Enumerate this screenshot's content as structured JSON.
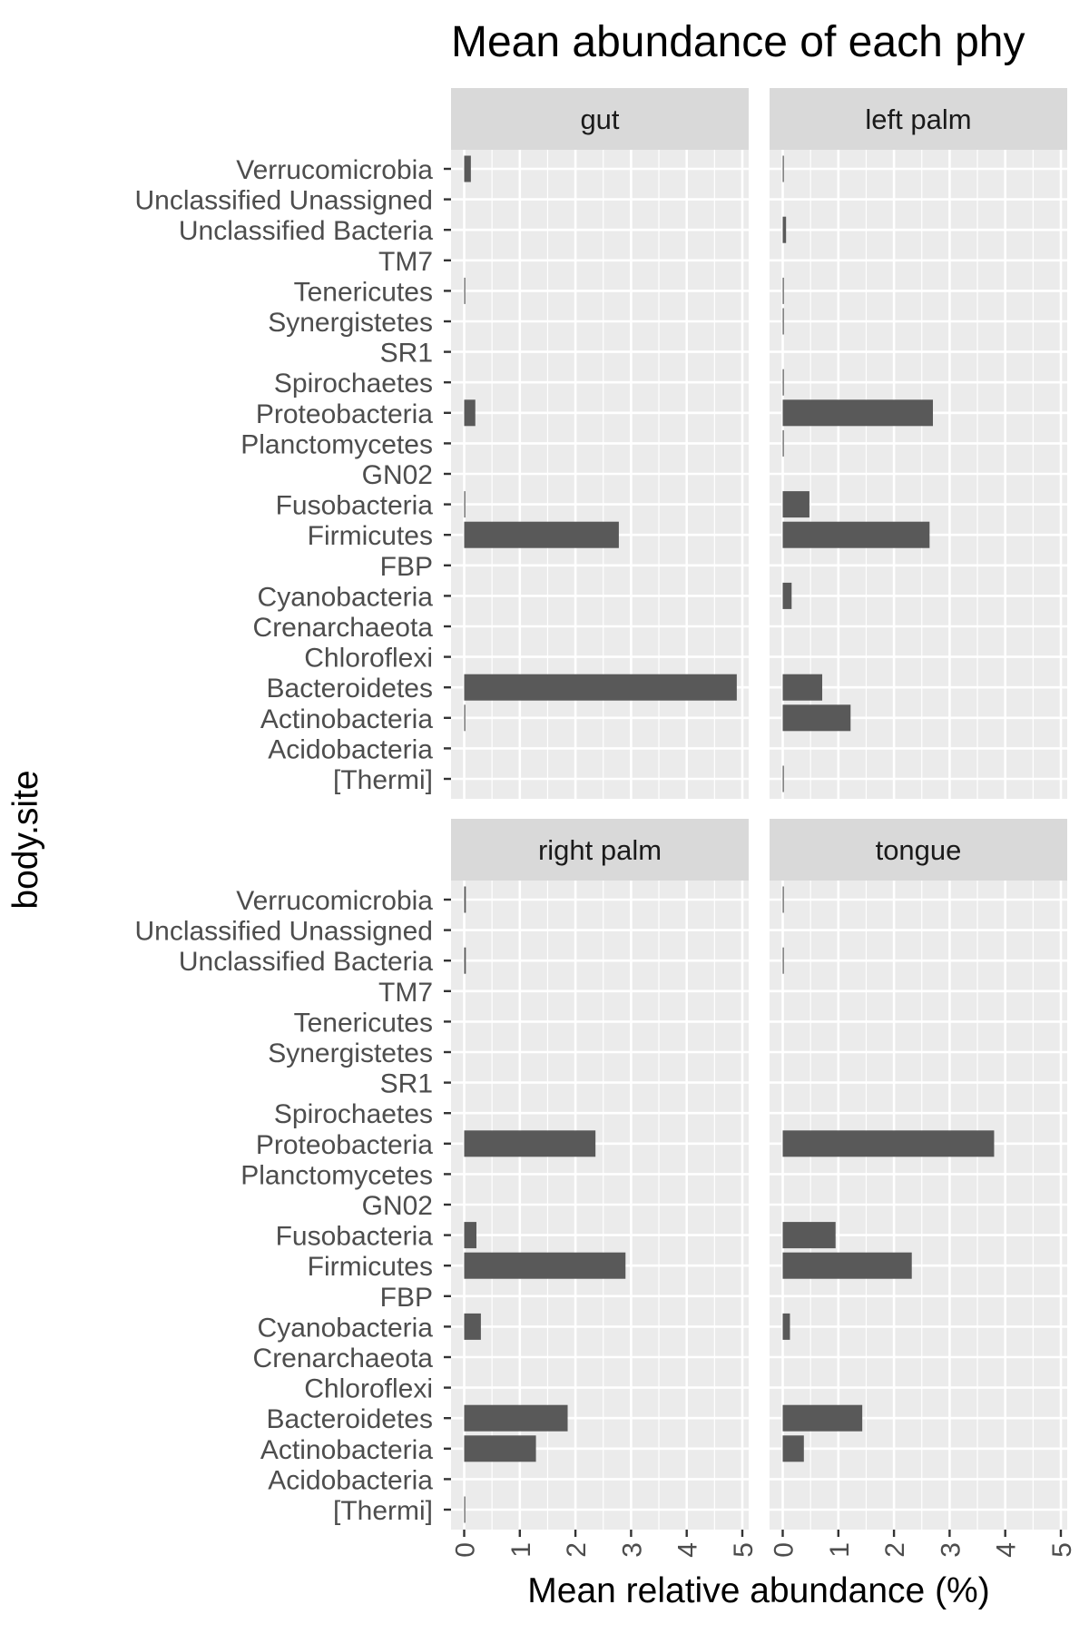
{
  "chart_data": {
    "type": "bar",
    "orientation": "horizontal",
    "facet_variable": "body.site",
    "title": "Mean abundance of each phy",
    "xlabel": "Mean relative abundance (%)",
    "ylabel": "body.site",
    "xlim": [
      0,
      5
    ],
    "x_ticks": [
      "0",
      "1",
      "2",
      "3",
      "4",
      "5"
    ],
    "grid": true,
    "categories": [
      "Verrucomicrobia",
      "Unclassified Unassigned",
      "Unclassified Bacteria",
      "TM7",
      "Tenericutes",
      "Synergistetes",
      "SR1",
      "Spirochaetes",
      "Proteobacteria",
      "Planctomycetes",
      "GN02",
      "Fusobacteria",
      "Firmicutes",
      "FBP",
      "Cyanobacteria",
      "Crenarchaeota",
      "Chloroflexi",
      "Bacteroidetes",
      "Actinobacteria",
      "Acidobacteria",
      "[Thermi]"
    ],
    "panels": [
      {
        "name": "gut",
        "values": [
          0.12,
          0,
          0,
          0,
          0.01,
          0,
          0,
          0,
          0.2,
          0,
          0,
          0.02,
          2.78,
          0,
          0,
          0,
          0,
          4.9,
          0.02,
          0,
          0
        ]
      },
      {
        "name": "left palm",
        "values": [
          0.02,
          0,
          0.06,
          0,
          0.02,
          0.02,
          0,
          0.02,
          2.7,
          0.01,
          0,
          0.48,
          2.64,
          0,
          0.16,
          0,
          0,
          0.71,
          1.22,
          0,
          0.02
        ]
      },
      {
        "name": "right palm",
        "values": [
          0.03,
          0,
          0.03,
          0,
          0,
          0,
          0,
          0,
          2.36,
          0,
          0,
          0.22,
          2.9,
          0,
          0.3,
          0,
          0,
          1.86,
          1.29,
          0,
          0.01
        ]
      },
      {
        "name": "tongue",
        "values": [
          0.01,
          0,
          0.01,
          0,
          0,
          0,
          0,
          0,
          3.8,
          0,
          0,
          0.95,
          2.32,
          0,
          0.13,
          0,
          0,
          1.43,
          0.38,
          0,
          0
        ]
      }
    ]
  }
}
